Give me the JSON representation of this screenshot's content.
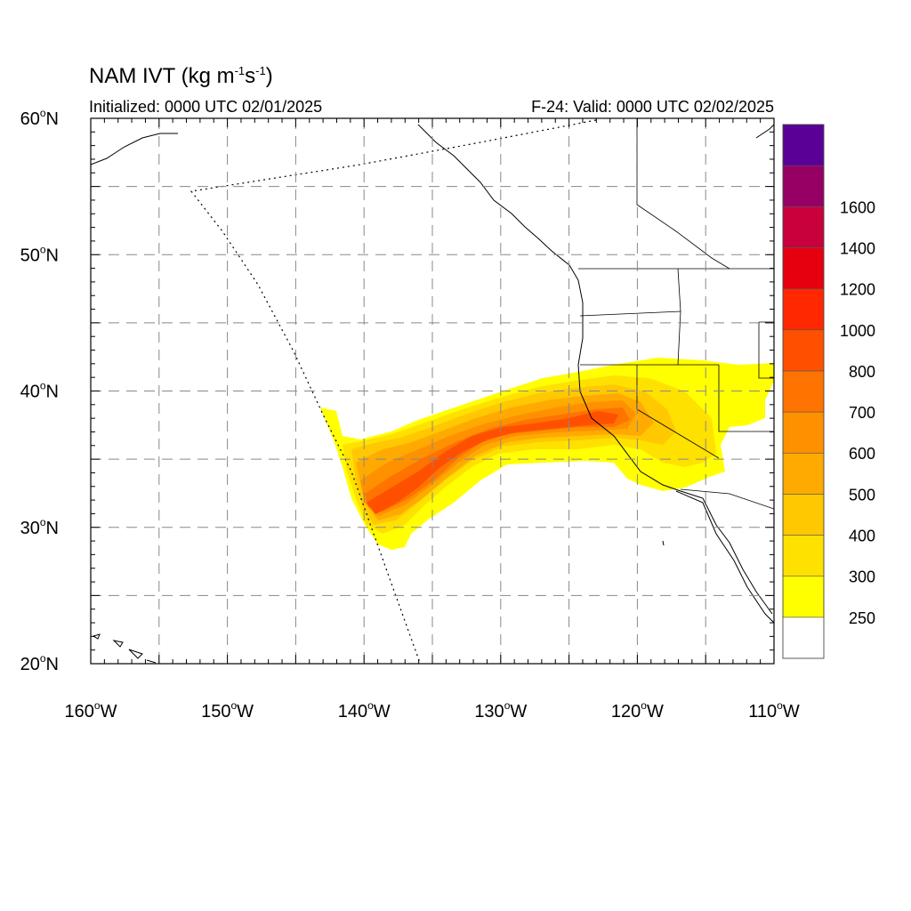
{
  "title": {
    "main": "NAM IVT (kg m",
    "exp1": "-1",
    "mid": "s",
    "exp2": "-1",
    "close": ")"
  },
  "subtitle_left": "Initialized: 0000 UTC 02/01/2025",
  "subtitle_right": "F-24: Valid: 0000 UTC 02/02/2025",
  "axes": {
    "lat_labels": [
      {
        "value": 60,
        "text": "60",
        "suffix": "N"
      },
      {
        "value": 50,
        "text": "50",
        "suffix": "N"
      },
      {
        "value": 40,
        "text": "40",
        "suffix": "N"
      },
      {
        "value": 30,
        "text": "30",
        "suffix": "N"
      },
      {
        "value": 20,
        "text": "20",
        "suffix": "N"
      }
    ],
    "lon_labels": [
      {
        "value": -160,
        "text": "160",
        "suffix": "W"
      },
      {
        "value": -150,
        "text": "150",
        "suffix": "W"
      },
      {
        "value": -140,
        "text": "140",
        "suffix": "W"
      },
      {
        "value": -130,
        "text": "130",
        "suffix": "W"
      },
      {
        "value": -120,
        "text": "120",
        "suffix": "W"
      },
      {
        "value": -110,
        "text": "110",
        "suffix": "W"
      }
    ],
    "lat_range": [
      20,
      60
    ],
    "lon_range": [
      -160,
      -110
    ],
    "gridlines": "dashed"
  },
  "colorbar": {
    "labels": [
      "250",
      "300",
      "400",
      "500",
      "600",
      "700",
      "800",
      "1000",
      "1200",
      "1400",
      "1600"
    ],
    "colors": [
      "#ffffff",
      "#ffff00",
      "#ffe100",
      "#ffc800",
      "#ffaa00",
      "#ff9100",
      "#ff7300",
      "#ff5000",
      "#ff2800",
      "#e6000f",
      "#c8003c",
      "#960064",
      "#5a0096"
    ]
  }
}
